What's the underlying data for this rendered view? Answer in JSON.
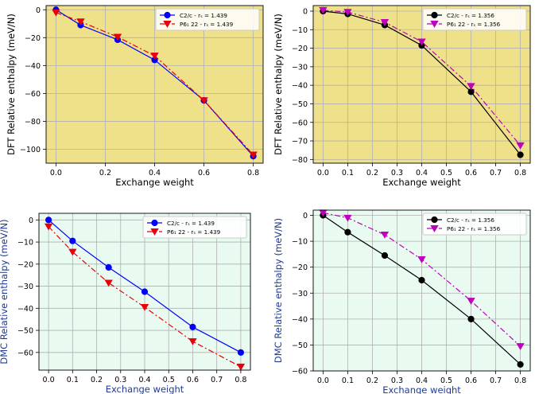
{
  "chart_data": [
    {
      "type": "line",
      "xlabel": "Exchange weight",
      "ylabel": "DFT Relative enthalpy (meV/N)",
      "label_color": "#000000",
      "background": "#efe08a",
      "xlim": [
        -0.04,
        0.84
      ],
      "ylim": [
        -110,
        3
      ],
      "xticks": [
        0.0,
        0.2,
        0.4,
        0.6,
        0.8
      ],
      "xtick_labels": [
        "0.0",
        "0.2",
        "0.4",
        "0.6",
        "0.8"
      ],
      "yticks": [
        0,
        -20,
        -40,
        -60,
        -80,
        -100
      ],
      "ytick_labels": [
        "0",
        "−20",
        "−40",
        "−60",
        "−80",
        "−100"
      ],
      "grid": true,
      "legend_position": "top-right",
      "series": [
        {
          "name": "C2/c - rₛ = 1.439",
          "color": "#0000ff",
          "marker": "circle",
          "linestyle": "solid",
          "x": [
            0.0,
            0.1,
            0.25,
            0.4,
            0.6,
            0.8
          ],
          "y": [
            0.0,
            -11,
            -21.5,
            -36,
            -65,
            -105
          ]
        },
        {
          "name": "P6₁ 22 - rₛ = 1.439",
          "color": "#e8000b",
          "marker": "triangle-down",
          "linestyle": "dashdot",
          "x": [
            0.0,
            0.1,
            0.25,
            0.4,
            0.6,
            0.8
          ],
          "y": [
            -2,
            -8.5,
            -19.5,
            -33,
            -65,
            -104
          ]
        }
      ]
    },
    {
      "type": "line",
      "xlabel": "Exchange weight",
      "ylabel": "DFT Relative enthalpy (meV/N)",
      "label_color": "#000000",
      "background": "#efe08a",
      "xlim": [
        -0.04,
        0.84
      ],
      "ylim": [
        -82,
        3
      ],
      "xticks": [
        0.0,
        0.1,
        0.2,
        0.3,
        0.4,
        0.5,
        0.6,
        0.7,
        0.8
      ],
      "xtick_labels": [
        "0.0",
        "0.1",
        "0.2",
        "0.3",
        "0.4",
        "0.5",
        "0.6",
        "0.7",
        "0.8"
      ],
      "yticks": [
        0,
        -10,
        -20,
        -30,
        -40,
        -50,
        -60,
        -70,
        -80
      ],
      "ytick_labels": [
        "0",
        "−10",
        "−20",
        "−30",
        "−40",
        "−50",
        "−60",
        "−70",
        "−80"
      ],
      "grid": true,
      "legend_position": "top-right",
      "series": [
        {
          "name": "C2/c - rₛ = 1.356",
          "color": "#000000",
          "marker": "circle",
          "linestyle": "solid",
          "x": [
            0.0,
            0.1,
            0.25,
            0.4,
            0.6,
            0.8
          ],
          "y": [
            0.0,
            -1.5,
            -7.5,
            -18.5,
            -43.5,
            -77.5
          ]
        },
        {
          "name": "P6₁ 22 - rₛ = 1.356",
          "color": "#bf00bf",
          "marker": "triangle-down",
          "linestyle": "dashdot",
          "x": [
            0.0,
            0.1,
            0.25,
            0.4,
            0.6,
            0.8
          ],
          "y": [
            0.5,
            -0.5,
            -6,
            -16.5,
            -40.5,
            -72.5
          ]
        }
      ]
    },
    {
      "type": "line",
      "xlabel": "Exchange weight",
      "ylabel": "DMC Relative enthalpy (meV/N)",
      "label_color": "#1f3a93",
      "background": "#e9fbf1",
      "xlim": [
        -0.04,
        0.84
      ],
      "ylim": [
        -68,
        3
      ],
      "xticks": [
        0.0,
        0.1,
        0.2,
        0.3,
        0.4,
        0.5,
        0.6,
        0.7,
        0.8
      ],
      "xtick_labels": [
        "0.0",
        "0.1",
        "0.2",
        "0.3",
        "0.4",
        "0.5",
        "0.6",
        "0.7",
        "0.8"
      ],
      "yticks": [
        0,
        -10,
        -20,
        -30,
        -40,
        -50,
        -60
      ],
      "ytick_labels": [
        "0",
        "−10",
        "−20",
        "−30",
        "−40",
        "−50",
        "−60"
      ],
      "grid": true,
      "legend_position": "top-right",
      "series": [
        {
          "name": "C2/c - rₛ = 1.439",
          "color": "#0000ff",
          "marker": "circle",
          "linestyle": "solid",
          "x": [
            0.0,
            0.1,
            0.25,
            0.4,
            0.6,
            0.8
          ],
          "y": [
            0.0,
            -9.5,
            -21.5,
            -32.5,
            -48.5,
            -60
          ]
        },
        {
          "name": "P6₁ 22 - rₛ = 1.439",
          "color": "#e8000b",
          "marker": "triangle-down",
          "linestyle": "dashdot",
          "x": [
            0.0,
            0.1,
            0.25,
            0.4,
            0.6,
            0.8
          ],
          "y": [
            -3,
            -14.5,
            -28.5,
            -39.5,
            -55,
            -66.5
          ]
        }
      ]
    },
    {
      "type": "line",
      "xlabel": "Exchange weight",
      "ylabel": "DMC Relative enthalpy (meV/N)",
      "label_color": "#1f3a93",
      "background": "#e9fbf1",
      "xlim": [
        -0.04,
        0.84
      ],
      "ylim": [
        -60,
        2
      ],
      "xticks": [
        0.0,
        0.1,
        0.2,
        0.3,
        0.4,
        0.5,
        0.6,
        0.7,
        0.8
      ],
      "xtick_labels": [
        "0.0",
        "0.1",
        "0.2",
        "0.3",
        "0.4",
        "0.5",
        "0.6",
        "0.7",
        "0.8"
      ],
      "yticks": [
        0,
        -10,
        -20,
        -30,
        -40,
        -50,
        -60
      ],
      "ytick_labels": [
        "0",
        "−10",
        "−20",
        "−30",
        "−40",
        "−50",
        "−60"
      ],
      "grid": true,
      "legend_position": "top-right",
      "series": [
        {
          "name": "C2/c - rₛ = 1.356",
          "color": "#000000",
          "marker": "circle",
          "linestyle": "solid",
          "x": [
            0.0,
            0.1,
            0.25,
            0.4,
            0.6,
            0.8
          ],
          "y": [
            0.0,
            -6.5,
            -15.5,
            -25,
            -40,
            -57.5
          ]
        },
        {
          "name": "P6₁ 22 - rₛ = 1.356",
          "color": "#bf00bf",
          "marker": "triangle-down",
          "linestyle": "dashdot",
          "x": [
            0.0,
            0.1,
            0.25,
            0.4,
            0.6,
            0.8
          ],
          "y": [
            1,
            -1,
            -7.5,
            -17,
            -33,
            -50.5
          ]
        }
      ]
    }
  ]
}
